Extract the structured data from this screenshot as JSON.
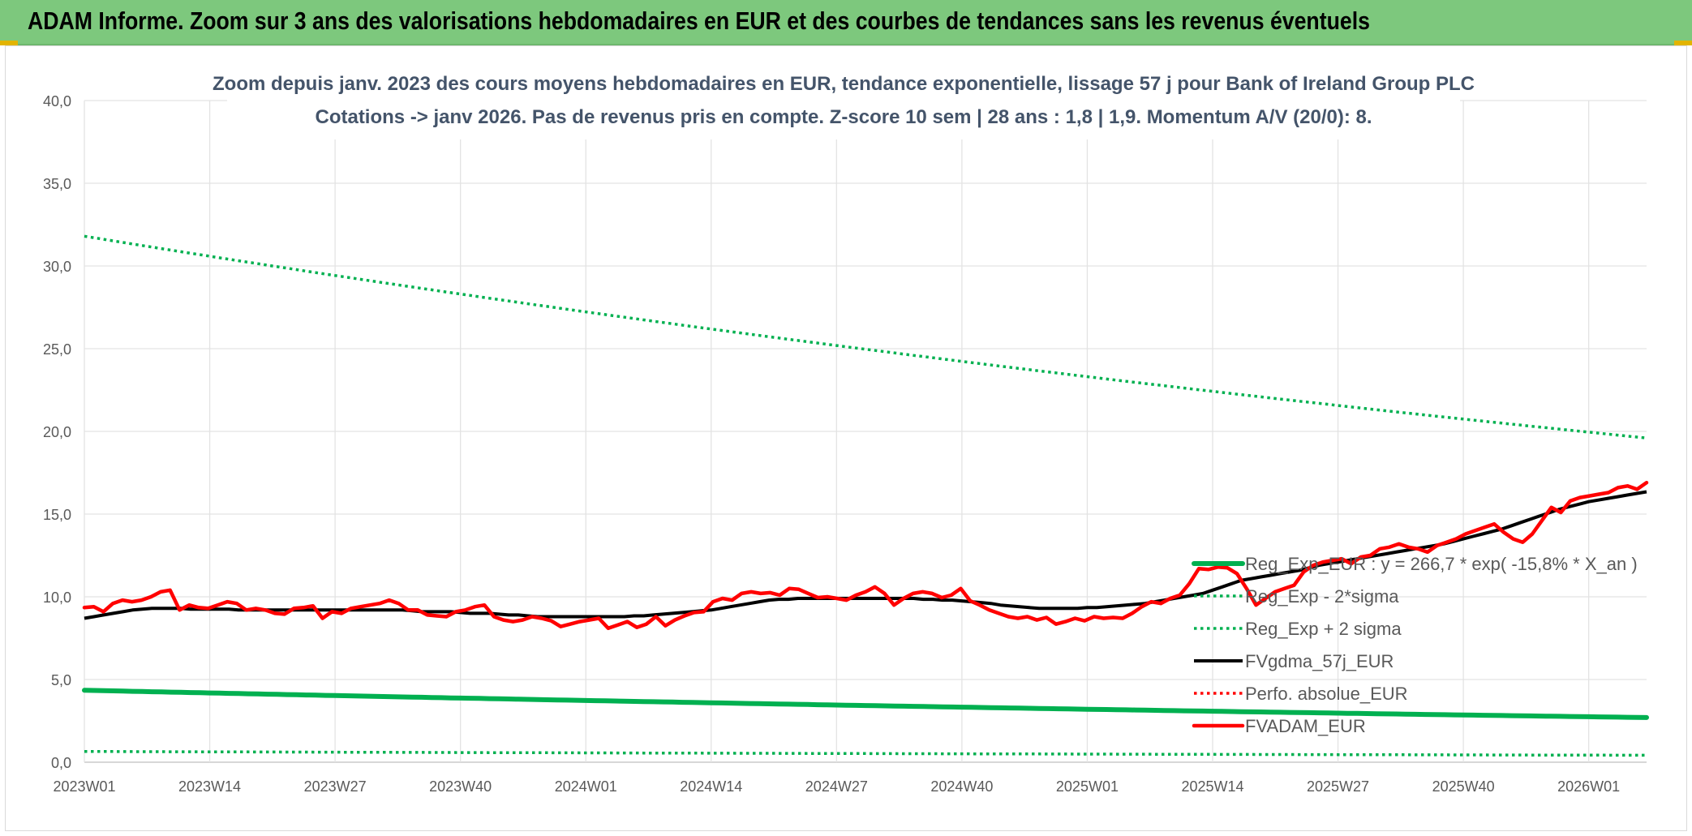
{
  "banner": {
    "title": "ADAM Informe. Zoom sur 3 ans des valorisations hebdomadaires en EUR et des courbes de tendances sans les revenus éventuels"
  },
  "chart_data": {
    "type": "line",
    "title_line1": "Zoom depuis janv. 2023 des cours moyens hebdomadaires en EUR, tendance exponentielle, lissage 57 j pour Bank of Ireland Group PLC",
    "title_line2": "Cotations -> janv 2026. Pas de revenus pris en compte. Z-score 10 sem | 28 ans : 1,8 | 1,9. Momentum A/V (20/0): 8.",
    "ylim": [
      0,
      40
    ],
    "y_ticks": [
      "0,0",
      "5,0",
      "10,0",
      "15,0",
      "20,0",
      "25,0",
      "30,0",
      "35,0",
      "40,0"
    ],
    "x_ticks": [
      "2023W01",
      "2023W14",
      "2023W27",
      "2023W40",
      "2024W01",
      "2024W14",
      "2024W27",
      "2024W40",
      "2025W01",
      "2025W14",
      "2025W27",
      "2025W40",
      "2026W01"
    ],
    "n_weeks": 163,
    "grid": true,
    "legend_position": "right",
    "series": [
      {
        "name": "Reg_Exp_EUR : y = 266,7 * exp( -15,8% *  X_an )",
        "style": "solid-thick",
        "color": "#00b050",
        "values": [
          4.35,
          2.7
        ]
      },
      {
        "name": "Reg_Exp - 2*sigma",
        "style": "dotted",
        "color": "#00b050",
        "values": [
          0.65,
          0.42
        ]
      },
      {
        "name": "Reg_Exp + 2 sigma",
        "style": "dotted",
        "color": "#00b050",
        "values": [
          31.8,
          19.6
        ]
      },
      {
        "name": "FVgdma_57j_EUR",
        "style": "solid",
        "color": "#000000",
        "values": [
          8.7,
          8.8,
          8.9,
          9.0,
          9.1,
          9.2,
          9.25,
          9.3,
          9.3,
          9.3,
          9.3,
          9.25,
          9.25,
          9.25,
          9.25,
          9.25,
          9.2,
          9.2,
          9.2,
          9.2,
          9.2,
          9.2,
          9.2,
          9.2,
          9.2,
          9.2,
          9.2,
          9.2,
          9.2,
          9.2,
          9.2,
          9.2,
          9.2,
          9.2,
          9.15,
          9.1,
          9.1,
          9.1,
          9.1,
          9.05,
          9.0,
          9.0,
          9.0,
          8.95,
          8.9,
          8.9,
          8.85,
          8.8,
          8.8,
          8.8,
          8.8,
          8.8,
          8.8,
          8.8,
          8.8,
          8.8,
          8.8,
          8.85,
          8.85,
          8.9,
          8.95,
          9.0,
          9.05,
          9.1,
          9.15,
          9.2,
          9.3,
          9.4,
          9.5,
          9.6,
          9.7,
          9.8,
          9.85,
          9.85,
          9.9,
          9.9,
          9.9,
          9.9,
          9.9,
          9.9,
          9.9,
          9.9,
          9.9,
          9.9,
          9.9,
          9.9,
          9.9,
          9.85,
          9.85,
          9.8,
          9.8,
          9.75,
          9.7,
          9.65,
          9.6,
          9.5,
          9.45,
          9.4,
          9.35,
          9.3,
          9.3,
          9.3,
          9.3,
          9.3,
          9.35,
          9.35,
          9.4,
          9.45,
          9.5,
          9.55,
          9.6,
          9.7,
          9.8,
          9.9,
          10.0,
          10.1,
          10.2,
          10.4,
          10.6,
          10.8,
          11.0,
          11.1,
          11.2,
          11.3,
          11.4,
          11.5,
          11.6,
          11.75,
          11.9,
          12.0,
          12.1,
          12.2,
          12.3,
          12.4,
          12.5,
          12.6,
          12.7,
          12.8,
          12.9,
          13.0,
          13.1,
          13.2,
          13.35,
          13.5,
          13.65,
          13.8,
          13.95,
          14.1,
          14.3,
          14.5,
          14.7,
          14.9,
          15.1,
          15.3,
          15.45,
          15.6,
          15.75,
          15.85,
          15.95,
          16.05,
          16.15,
          16.25,
          16.35
        ]
      },
      {
        "name": "Perfo. absolue_EUR",
        "style": "dotted",
        "color": "#ff0000",
        "values": []
      },
      {
        "name": "FVADAM_EUR",
        "style": "solid-thick",
        "color": "#ff0000",
        "values": [
          9.35,
          9.4,
          9.1,
          9.6,
          9.8,
          9.7,
          9.8,
          10.0,
          10.3,
          10.4,
          9.2,
          9.5,
          9.35,
          9.3,
          9.5,
          9.7,
          9.6,
          9.2,
          9.3,
          9.2,
          9.0,
          8.95,
          9.3,
          9.35,
          9.45,
          8.7,
          9.1,
          9.0,
          9.3,
          9.4,
          9.5,
          9.6,
          9.8,
          9.6,
          9.2,
          9.2,
          8.9,
          8.85,
          8.8,
          9.1,
          9.2,
          9.4,
          9.5,
          8.8,
          8.6,
          8.5,
          8.6,
          8.8,
          8.7,
          8.55,
          8.2,
          8.35,
          8.5,
          8.6,
          8.7,
          8.1,
          8.3,
          8.5,
          8.15,
          8.35,
          8.8,
          8.25,
          8.6,
          8.85,
          9.05,
          9.1,
          9.7,
          9.9,
          9.8,
          10.2,
          10.3,
          10.2,
          10.25,
          10.1,
          10.5,
          10.45,
          10.2,
          9.95,
          10.0,
          9.9,
          9.8,
          10.1,
          10.3,
          10.6,
          10.2,
          9.5,
          9.9,
          10.2,
          10.3,
          10.2,
          9.95,
          10.1,
          10.5,
          9.75,
          9.5,
          9.2,
          9.0,
          8.8,
          8.7,
          8.8,
          8.6,
          8.75,
          8.35,
          8.5,
          8.7,
          8.55,
          8.8,
          8.7,
          8.75,
          8.7,
          9.0,
          9.4,
          9.7,
          9.6,
          9.9,
          10.1,
          10.8,
          11.7,
          11.65,
          11.8,
          11.75,
          11.4,
          10.5,
          9.5,
          9.9,
          10.3,
          10.5,
          10.7,
          11.5,
          11.9,
          12.1,
          12.2,
          12.3,
          12.0,
          12.4,
          12.5,
          12.9,
          13.0,
          13.2,
          13.0,
          12.9,
          12.7,
          13.1,
          13.3,
          13.5,
          13.8,
          14.0,
          14.2,
          14.4,
          13.9,
          13.5,
          13.3,
          13.8,
          14.6,
          15.4,
          15.1,
          15.8,
          16.0,
          16.1,
          16.2,
          16.3,
          16.6,
          16.7,
          16.5,
          16.9
        ]
      }
    ]
  }
}
